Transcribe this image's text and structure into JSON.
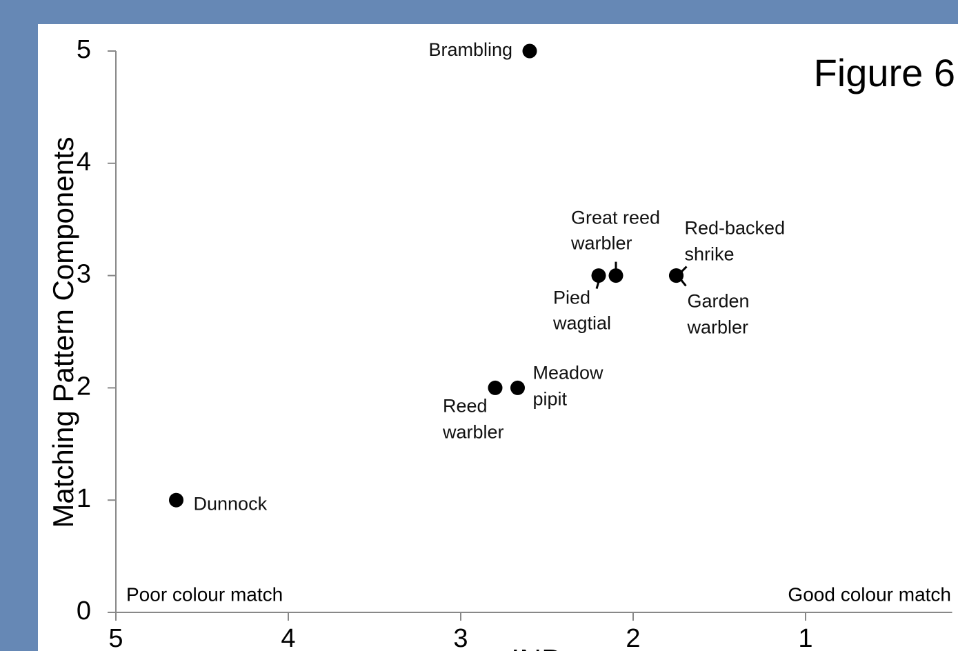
{
  "chart_data": {
    "type": "scatter",
    "title": "Figure 6",
    "x_label": "INDs",
    "y_label": "Matching Pattern Components",
    "annotations": [
      "Poor colour match",
      "Good colour match"
    ],
    "x": [
      2.6,
      2.1,
      2.2,
      1.75,
      1.75,
      2.67,
      2.8,
      4.65
    ],
    "values": [
      5,
      3,
      3,
      3,
      3,
      2,
      2,
      1
    ],
    "labels": [
      [
        "Brambling"
      ],
      [
        "Great reed",
        "warbler"
      ],
      [
        "Pied",
        "wagtial"
      ],
      [
        "Red-backed",
        "shrike"
      ],
      [
        "Garden",
        "warbler"
      ],
      [
        "Meadow",
        "pipit"
      ],
      [
        "Reed",
        "warbler"
      ],
      [
        "Dunnock"
      ]
    ],
    "color": "#000000",
    "xlim": [
      5,
      0.15
    ],
    "ylim": [
      0,
      5
    ],
    "xticks": [
      5,
      4,
      3,
      2,
      1
    ],
    "yticks": [
      0,
      1,
      2,
      3,
      4,
      5
    ]
  }
}
